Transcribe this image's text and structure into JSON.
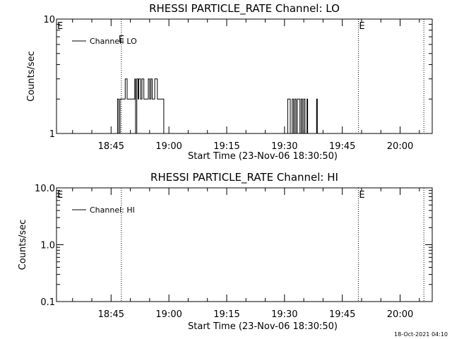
{
  "chart_data": [
    {
      "type": "line",
      "title": "RHESSI PARTICLE_RATE Channel: LO",
      "xlabel": "Start Time (23-Nov-06 18:30:50)",
      "ylabel": "Counts/sec",
      "y_scale": "log",
      "ylim": [
        1,
        10
      ],
      "y_ticks": [
        1,
        10
      ],
      "y_tick_labels": [
        "1",
        "10"
      ],
      "x_range": [
        "18:30:50",
        "20:08:20"
      ],
      "x_ticks": [
        "18:45",
        "19:00",
        "19:15",
        "19:30",
        "19:45",
        "20:00"
      ],
      "legend": {
        "entries": [
          "Channel: LO"
        ],
        "placement": "top-left"
      },
      "event_lines": [
        {
          "time": "18:47:40",
          "label": "E"
        },
        {
          "time": "19:49:10",
          "label": ""
        },
        {
          "time": "20:06:10",
          "label": ""
        }
      ],
      "event_markers": [
        {
          "time": "18:30:50",
          "label": "E"
        },
        {
          "time": "19:49:10",
          "label": "E"
        }
      ],
      "series": [
        {
          "name": "Channel: LO",
          "x": [
            "18:44:50",
            "18:46:30",
            "18:46:40",
            "18:47:00",
            "18:47:20",
            "18:48:00",
            "18:48:10",
            "18:48:40",
            "18:49:10",
            "18:49:40",
            "18:50:00",
            "18:51:00",
            "18:51:10",
            "18:51:20",
            "18:51:40",
            "18:52:00",
            "18:52:10",
            "18:52:40",
            "18:53:00",
            "18:53:30",
            "18:53:50",
            "18:54:20",
            "18:54:40",
            "18:55:00",
            "18:55:20",
            "18:55:40",
            "18:56:00",
            "18:56:20",
            "18:56:40",
            "18:57:00",
            "18:57:10",
            "18:58:30",
            "18:58:40",
            "19:30:40",
            "19:30:50",
            "19:31:10",
            "19:31:30",
            "19:32:00",
            "19:32:20",
            "19:32:40",
            "19:33:00",
            "19:33:20",
            "19:33:40",
            "19:34:00",
            "19:34:20",
            "19:34:40",
            "19:35:00",
            "19:35:20",
            "19:35:50",
            "19:36:00",
            "19:38:10",
            "19:38:20"
          ],
          "y": [
            1,
            1,
            2,
            1,
            2,
            2,
            2,
            3,
            2,
            2,
            2,
            2,
            3,
            1,
            3,
            2,
            3,
            2,
            3,
            2,
            2,
            2,
            3,
            2,
            3,
            2,
            2,
            3,
            3,
            2,
            2,
            2,
            1,
            1,
            2,
            2,
            1,
            2,
            1,
            2,
            1,
            2,
            2,
            1,
            2,
            1,
            2,
            1,
            2,
            1,
            1,
            2
          ]
        }
      ]
    },
    {
      "type": "line",
      "title": "RHESSI PARTICLE_RATE Channel: HI",
      "xlabel": "Start Time (23-Nov-06 18:30:50)",
      "ylabel": "Counts/sec",
      "y_scale": "log",
      "ylim": [
        0.1,
        10
      ],
      "y_ticks": [
        0.1,
        1,
        10
      ],
      "y_tick_labels": [
        "0.1",
        "1.0",
        "10.0"
      ],
      "x_range": [
        "18:30:50",
        "20:08:20"
      ],
      "x_ticks": [
        "18:45",
        "19:00",
        "19:15",
        "19:30",
        "19:45",
        "20:00"
      ],
      "legend": {
        "entries": [
          "Channel: HI"
        ],
        "placement": "top-left"
      },
      "event_lines": [
        {
          "time": "18:47:40",
          "label": ""
        },
        {
          "time": "19:49:10",
          "label": ""
        },
        {
          "time": "20:06:10",
          "label": ""
        }
      ],
      "event_markers": [
        {
          "time": "18:30:50",
          "label": "E"
        },
        {
          "time": "19:49:10",
          "label": "E"
        }
      ],
      "series": [
        {
          "name": "Channel: HI",
          "x": [],
          "y": []
        }
      ]
    }
  ],
  "footer": {
    "timestamp": "18-Oct-2021 04:10"
  }
}
